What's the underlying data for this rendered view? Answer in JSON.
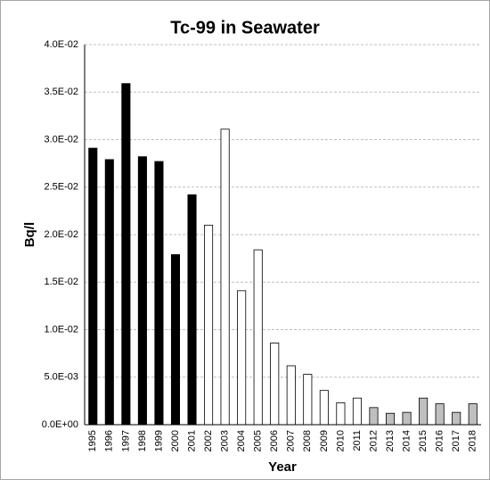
{
  "chart_data": {
    "type": "bar",
    "title": "Tc-99 in Seawater",
    "xlabel": "Year",
    "ylabel": "Bq/l",
    "categories": [
      "1995",
      "1996",
      "1997",
      "1998",
      "1999",
      "2000",
      "2001",
      "2002",
      "2003",
      "2004",
      "2005",
      "2006",
      "2007",
      "2008",
      "2009",
      "2010",
      "2011",
      "2012",
      "2013",
      "2014",
      "2015",
      "2016",
      "2017",
      "2018"
    ],
    "values": [
      0.0291,
      0.0279,
      0.0359,
      0.0282,
      0.0277,
      0.0179,
      0.0242,
      0.021,
      0.0311,
      0.0141,
      0.0184,
      0.0086,
      0.0062,
      0.0053,
      0.0036,
      0.0023,
      0.0028,
      0.0018,
      0.0012,
      0.0013,
      0.0028,
      0.0022,
      0.0013,
      0.0022
    ],
    "colors": [
      "#000000",
      "#000000",
      "#000000",
      "#000000",
      "#000000",
      "#000000",
      "#000000",
      "#ffffff",
      "#ffffff",
      "#ffffff",
      "#ffffff",
      "#ffffff",
      "#ffffff",
      "#ffffff",
      "#ffffff",
      "#ffffff",
      "#ffffff",
      "#bfbfbf",
      "#bfbfbf",
      "#bfbfbf",
      "#bfbfbf",
      "#bfbfbf",
      "#bfbfbf",
      "#bfbfbf"
    ],
    "edgecolor": "#000000",
    "ylim": [
      0,
      0.04
    ],
    "yticks": [
      {
        "value": 0,
        "label": "0.0E+00"
      },
      {
        "value": 0.005,
        "label": "5.0E-03"
      },
      {
        "value": 0.01,
        "label": "1.0E-02"
      },
      {
        "value": 0.015,
        "label": "1.5E-02"
      },
      {
        "value": 0.02,
        "label": "2.0E-02"
      },
      {
        "value": 0.025,
        "label": "2.5E-02"
      },
      {
        "value": 0.03,
        "label": "3.0E-02"
      },
      {
        "value": 0.035,
        "label": "3.5E-02"
      },
      {
        "value": 0.04,
        "label": "4.0E-02"
      }
    ],
    "grid": true
  }
}
